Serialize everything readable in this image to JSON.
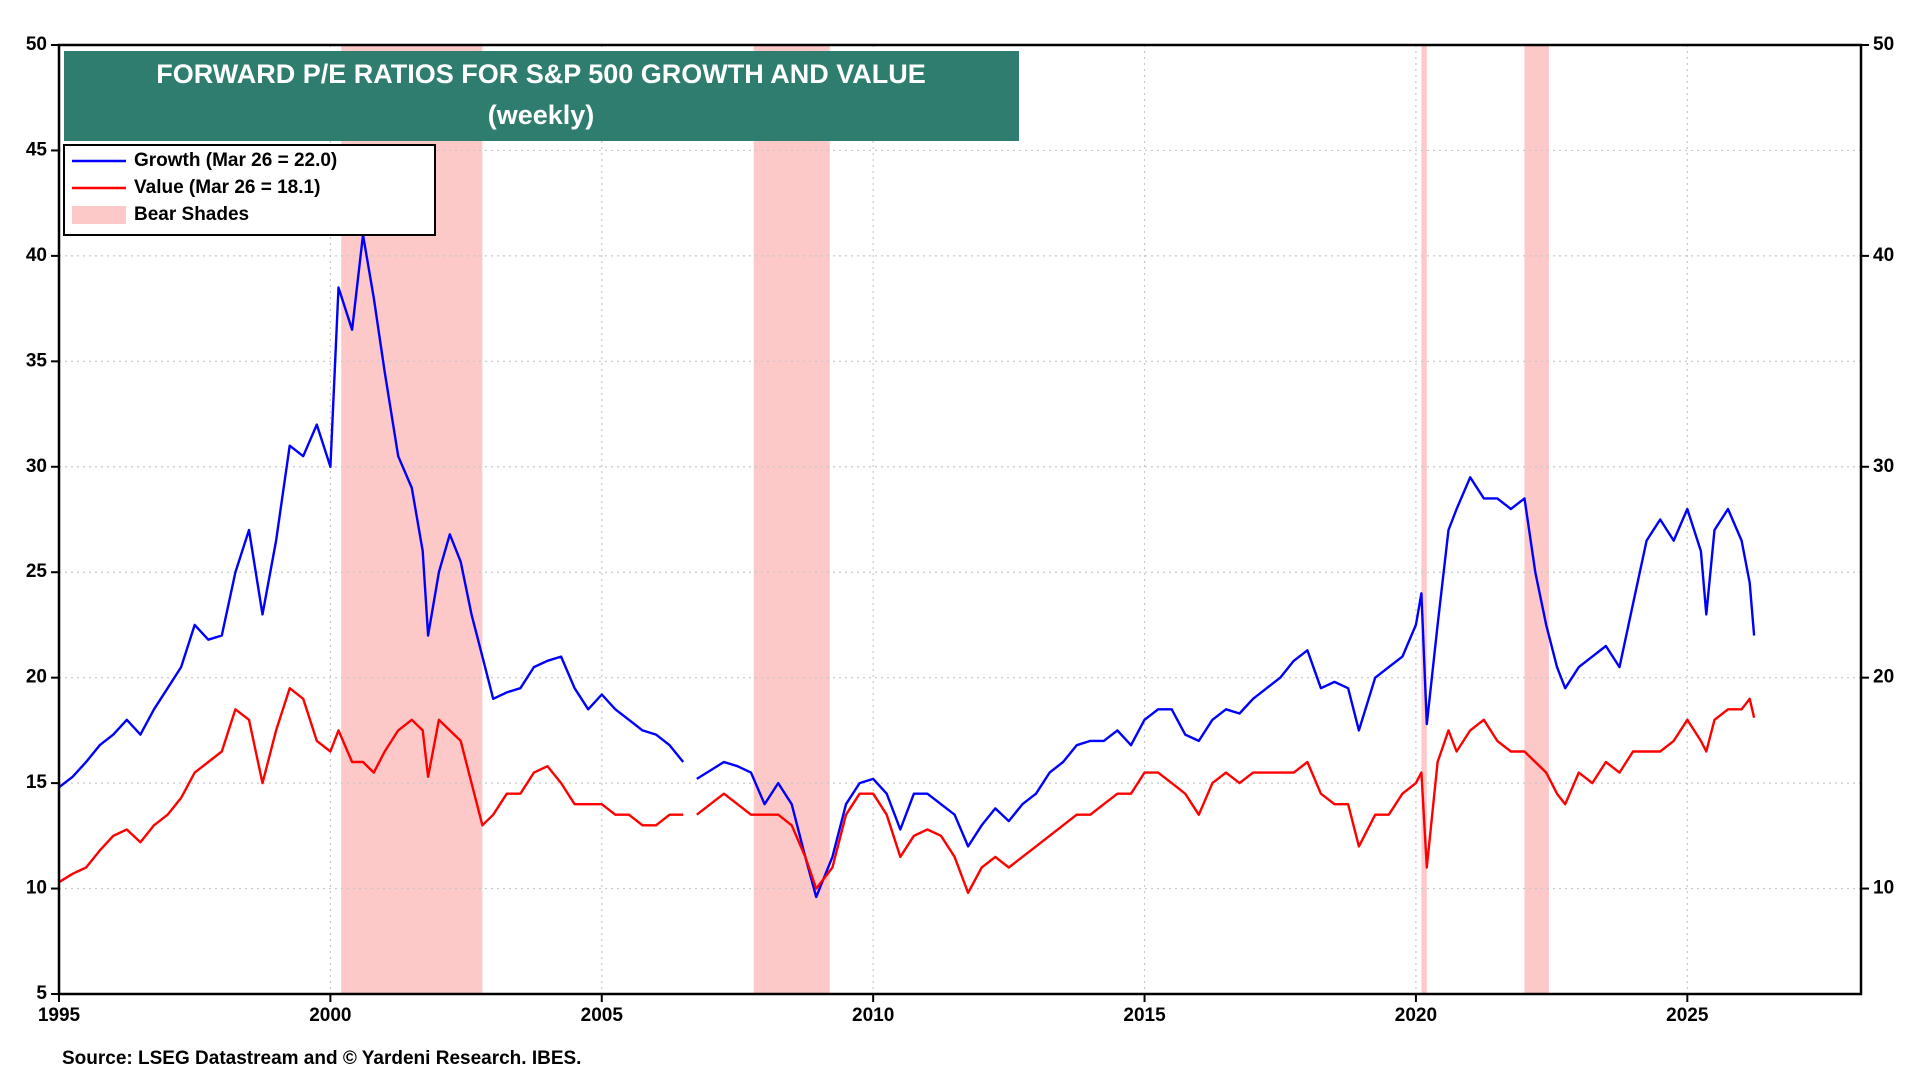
{
  "chart_data": {
    "type": "line",
    "title": "FORWARD P/E RATIOS FOR S&P 500 GROWTH AND VALUE",
    "subtitle": "(weekly)",
    "source": "Source: LSEG Datastream and © Yardeni Research. IBES.",
    "xlim": [
      1995,
      2028.2
    ],
    "xticks": [
      1995,
      2000,
      2005,
      2010,
      2015,
      2020,
      2025
    ],
    "ylim": [
      5,
      50
    ],
    "yticks": [
      5,
      10,
      15,
      20,
      25,
      30,
      35,
      40,
      45,
      50
    ],
    "y2lim": [
      5,
      50
    ],
    "y2ticks": [
      10,
      20,
      30,
      40,
      50
    ],
    "grid": true,
    "legend": "top-left",
    "x": [
      1995.0,
      1995.25,
      1995.5,
      1995.75,
      1996.0,
      1996.25,
      1996.5,
      1996.75,
      1997.0,
      1997.25,
      1997.5,
      1997.75,
      1998.0,
      1998.25,
      1998.5,
      1998.75,
      1999.0,
      1999.25,
      1999.5,
      1999.75,
      2000.0,
      2000.15,
      2000.4,
      2000.6,
      2000.8,
      2001.0,
      2001.25,
      2001.5,
      2001.7,
      2001.8,
      2002.0,
      2002.2,
      2002.4,
      2002.6,
      2002.8,
      2003.0,
      2003.25,
      2003.5,
      2003.75,
      2004.0,
      2004.25,
      2004.5,
      2004.75,
      2005.0,
      2005.25,
      2005.5,
      2005.75,
      2006.0,
      2006.25,
      2006.5,
      2006.6,
      2006.75,
      2007.0,
      2007.25,
      2007.5,
      2007.75,
      2008.0,
      2008.25,
      2008.5,
      2008.75,
      2008.95,
      2009.25,
      2009.5,
      2009.75,
      2010.0,
      2010.25,
      2010.5,
      2010.75,
      2011.0,
      2011.25,
      2011.5,
      2011.75,
      2012.0,
      2012.25,
      2012.5,
      2012.75,
      2013.0,
      2013.25,
      2013.5,
      2013.75,
      2014.0,
      2014.25,
      2014.5,
      2014.75,
      2015.0,
      2015.25,
      2015.5,
      2015.75,
      2016.0,
      2016.25,
      2016.5,
      2016.75,
      2017.0,
      2017.25,
      2017.5,
      2017.75,
      2018.0,
      2018.25,
      2018.5,
      2018.75,
      2018.95,
      2019.25,
      2019.5,
      2019.75,
      2020.0,
      2020.1,
      2020.2,
      2020.4,
      2020.6,
      2020.75,
      2021.0,
      2021.25,
      2021.5,
      2021.75,
      2022.0,
      2022.2,
      2022.4,
      2022.6,
      2022.75,
      2023.0,
      2023.25,
      2023.5,
      2023.75,
      2024.0,
      2024.25,
      2024.5,
      2024.75,
      2025.0,
      2025.25,
      2025.35,
      2025.5,
      2025.75,
      2026.0,
      2026.15,
      2026.23
    ],
    "series": [
      {
        "name": "Growth (Mar 26 = 22.0)",
        "color": "#0000ff",
        "values": [
          14.8,
          15.3,
          16.0,
          16.8,
          17.3,
          18.0,
          17.3,
          18.5,
          19.5,
          20.5,
          22.5,
          21.8,
          22.0,
          25.0,
          27.0,
          23.0,
          26.5,
          31.0,
          30.5,
          32.0,
          30.0,
          38.5,
          36.5,
          41.0,
          38.0,
          34.5,
          30.5,
          29.0,
          26.0,
          22.0,
          25.0,
          26.8,
          25.5,
          23.0,
          21.0,
          19.0,
          19.3,
          19.5,
          20.5,
          20.8,
          21.0,
          19.5,
          18.5,
          19.2,
          18.5,
          18.0,
          17.5,
          17.3,
          16.8,
          16.0,
          null,
          15.2,
          15.6,
          16.0,
          15.8,
          15.5,
          14.0,
          15.0,
          14.0,
          11.5,
          9.6,
          11.5,
          14.0,
          15.0,
          15.2,
          14.5,
          12.8,
          14.5,
          14.5,
          14.0,
          13.5,
          12.0,
          13.0,
          13.8,
          13.2,
          14.0,
          14.5,
          15.5,
          16.0,
          16.8,
          17.0,
          17.0,
          17.5,
          16.8,
          18.0,
          18.5,
          18.5,
          17.3,
          17.0,
          18.0,
          18.5,
          18.3,
          19.0,
          19.5,
          20.0,
          20.8,
          21.3,
          19.5,
          19.8,
          19.5,
          17.5,
          20.0,
          20.5,
          21.0,
          22.5,
          24.0,
          17.8,
          22.5,
          27.0,
          28.0,
          29.5,
          28.5,
          28.5,
          28.0,
          28.5,
          25.0,
          22.5,
          20.5,
          19.5,
          20.5,
          21.0,
          21.5,
          20.5,
          23.5,
          26.5,
          27.5,
          26.5,
          28.0,
          26.0,
          23.0,
          27.0,
          28.0,
          26.5,
          24.5,
          22.0
        ]
      },
      {
        "name": "Value (Mar 26 = 18.1)",
        "color": "#ff0000",
        "values": [
          10.3,
          10.7,
          11.0,
          11.8,
          12.5,
          12.8,
          12.2,
          13.0,
          13.5,
          14.3,
          15.5,
          16.0,
          16.5,
          18.5,
          18.0,
          15.0,
          17.5,
          19.5,
          19.0,
          17.0,
          16.5,
          17.5,
          16.0,
          16.0,
          15.5,
          16.5,
          17.5,
          18.0,
          17.5,
          15.3,
          18.0,
          17.5,
          17.0,
          15.0,
          13.0,
          13.5,
          14.5,
          14.5,
          15.5,
          15.8,
          15.0,
          14.0,
          14.0,
          14.0,
          13.5,
          13.5,
          13.0,
          13.0,
          13.5,
          13.5,
          null,
          13.5,
          14.0,
          14.5,
          14.0,
          13.5,
          13.5,
          13.5,
          13.0,
          11.5,
          10.0,
          11.0,
          13.5,
          14.5,
          14.5,
          13.5,
          11.5,
          12.5,
          12.8,
          12.5,
          11.5,
          9.8,
          11.0,
          11.5,
          11.0,
          11.5,
          12.0,
          12.5,
          13.0,
          13.5,
          13.5,
          14.0,
          14.5,
          14.5,
          15.5,
          15.5,
          15.0,
          14.5,
          13.5,
          15.0,
          15.5,
          15.0,
          15.5,
          15.5,
          15.5,
          15.5,
          16.0,
          14.5,
          14.0,
          14.0,
          12.0,
          13.5,
          13.5,
          14.5,
          15.0,
          15.5,
          11.0,
          16.0,
          17.5,
          16.5,
          17.5,
          18.0,
          17.0,
          16.5,
          16.5,
          16.0,
          15.5,
          14.5,
          14.0,
          15.5,
          15.0,
          16.0,
          15.5,
          16.5,
          16.5,
          16.5,
          17.0,
          18.0,
          17.0,
          16.5,
          18.0,
          18.5,
          18.5,
          19.0,
          18.1
        ]
      }
    ],
    "bear_shades": {
      "name": "Bear Shades",
      "color": "#fdc8c8",
      "ranges": [
        [
          2000.2,
          2002.8
        ],
        [
          2007.8,
          2009.2
        ],
        [
          2020.1,
          2020.2
        ],
        [
          2022.0,
          2022.45
        ]
      ]
    }
  }
}
